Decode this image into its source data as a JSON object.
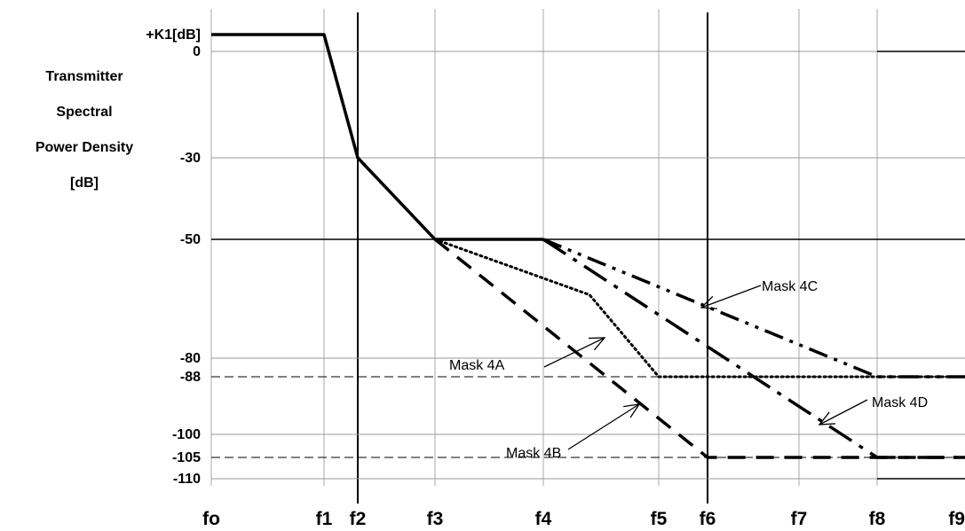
{
  "chart_data": {
    "type": "line",
    "ylabel_lines": [
      "Transmitter",
      "Spectral",
      "Power Density",
      "[dB]"
    ],
    "x_ticks": [
      "fo",
      "f1",
      "f2",
      "f3",
      "f4",
      "f5",
      "f6",
      "f7",
      "f8",
      "f9"
    ],
    "y_ticks": [
      {
        "label": "+K1[dB]",
        "value": 5
      },
      {
        "label": "0",
        "value": 0
      },
      {
        "label": "-30",
        "value": -30
      },
      {
        "label": "-50",
        "value": -50
      },
      {
        "label": "-80",
        "value": -80
      },
      {
        "label": "-88",
        "value": -88
      },
      {
        "label": "-100",
        "value": -100
      },
      {
        "label": "-105",
        "value": -105
      },
      {
        "label": "-110",
        "value": -110
      }
    ],
    "ylim": [
      -112,
      12
    ],
    "grid": true,
    "series": [
      {
        "name": "Mask 4A",
        "style": "dotted",
        "points": [
          [
            "f3",
            -50
          ],
          [
            "f4+0.4",
            -64
          ],
          [
            "f5",
            -88
          ],
          [
            "f9",
            -88
          ]
        ]
      },
      {
        "name": "Mask 4B",
        "style": "dashed",
        "points": [
          [
            "f3",
            -50
          ],
          [
            "f6",
            -105
          ],
          [
            "f9",
            -105
          ]
        ]
      },
      {
        "name": "Mask 4C",
        "style": "dash-dot-dot",
        "points": [
          [
            "f4",
            -50
          ],
          [
            "f8",
            -88
          ],
          [
            "f9",
            -88
          ]
        ]
      },
      {
        "name": "Mask 4D",
        "style": "long-dash-dot",
        "points": [
          [
            "f4",
            -50
          ],
          [
            "f8",
            -105
          ],
          [
            "f9",
            -105
          ]
        ]
      }
    ],
    "common_mask": {
      "points": [
        [
          "fo",
          5
        ],
        [
          "f1",
          5
        ],
        [
          "f2",
          -30
        ],
        [
          "f3",
          -50
        ],
        [
          "f4",
          -50
        ]
      ]
    },
    "annotations": [
      "Mask 4A",
      "Mask 4B",
      "Mask 4C",
      "Mask 4D"
    ]
  }
}
